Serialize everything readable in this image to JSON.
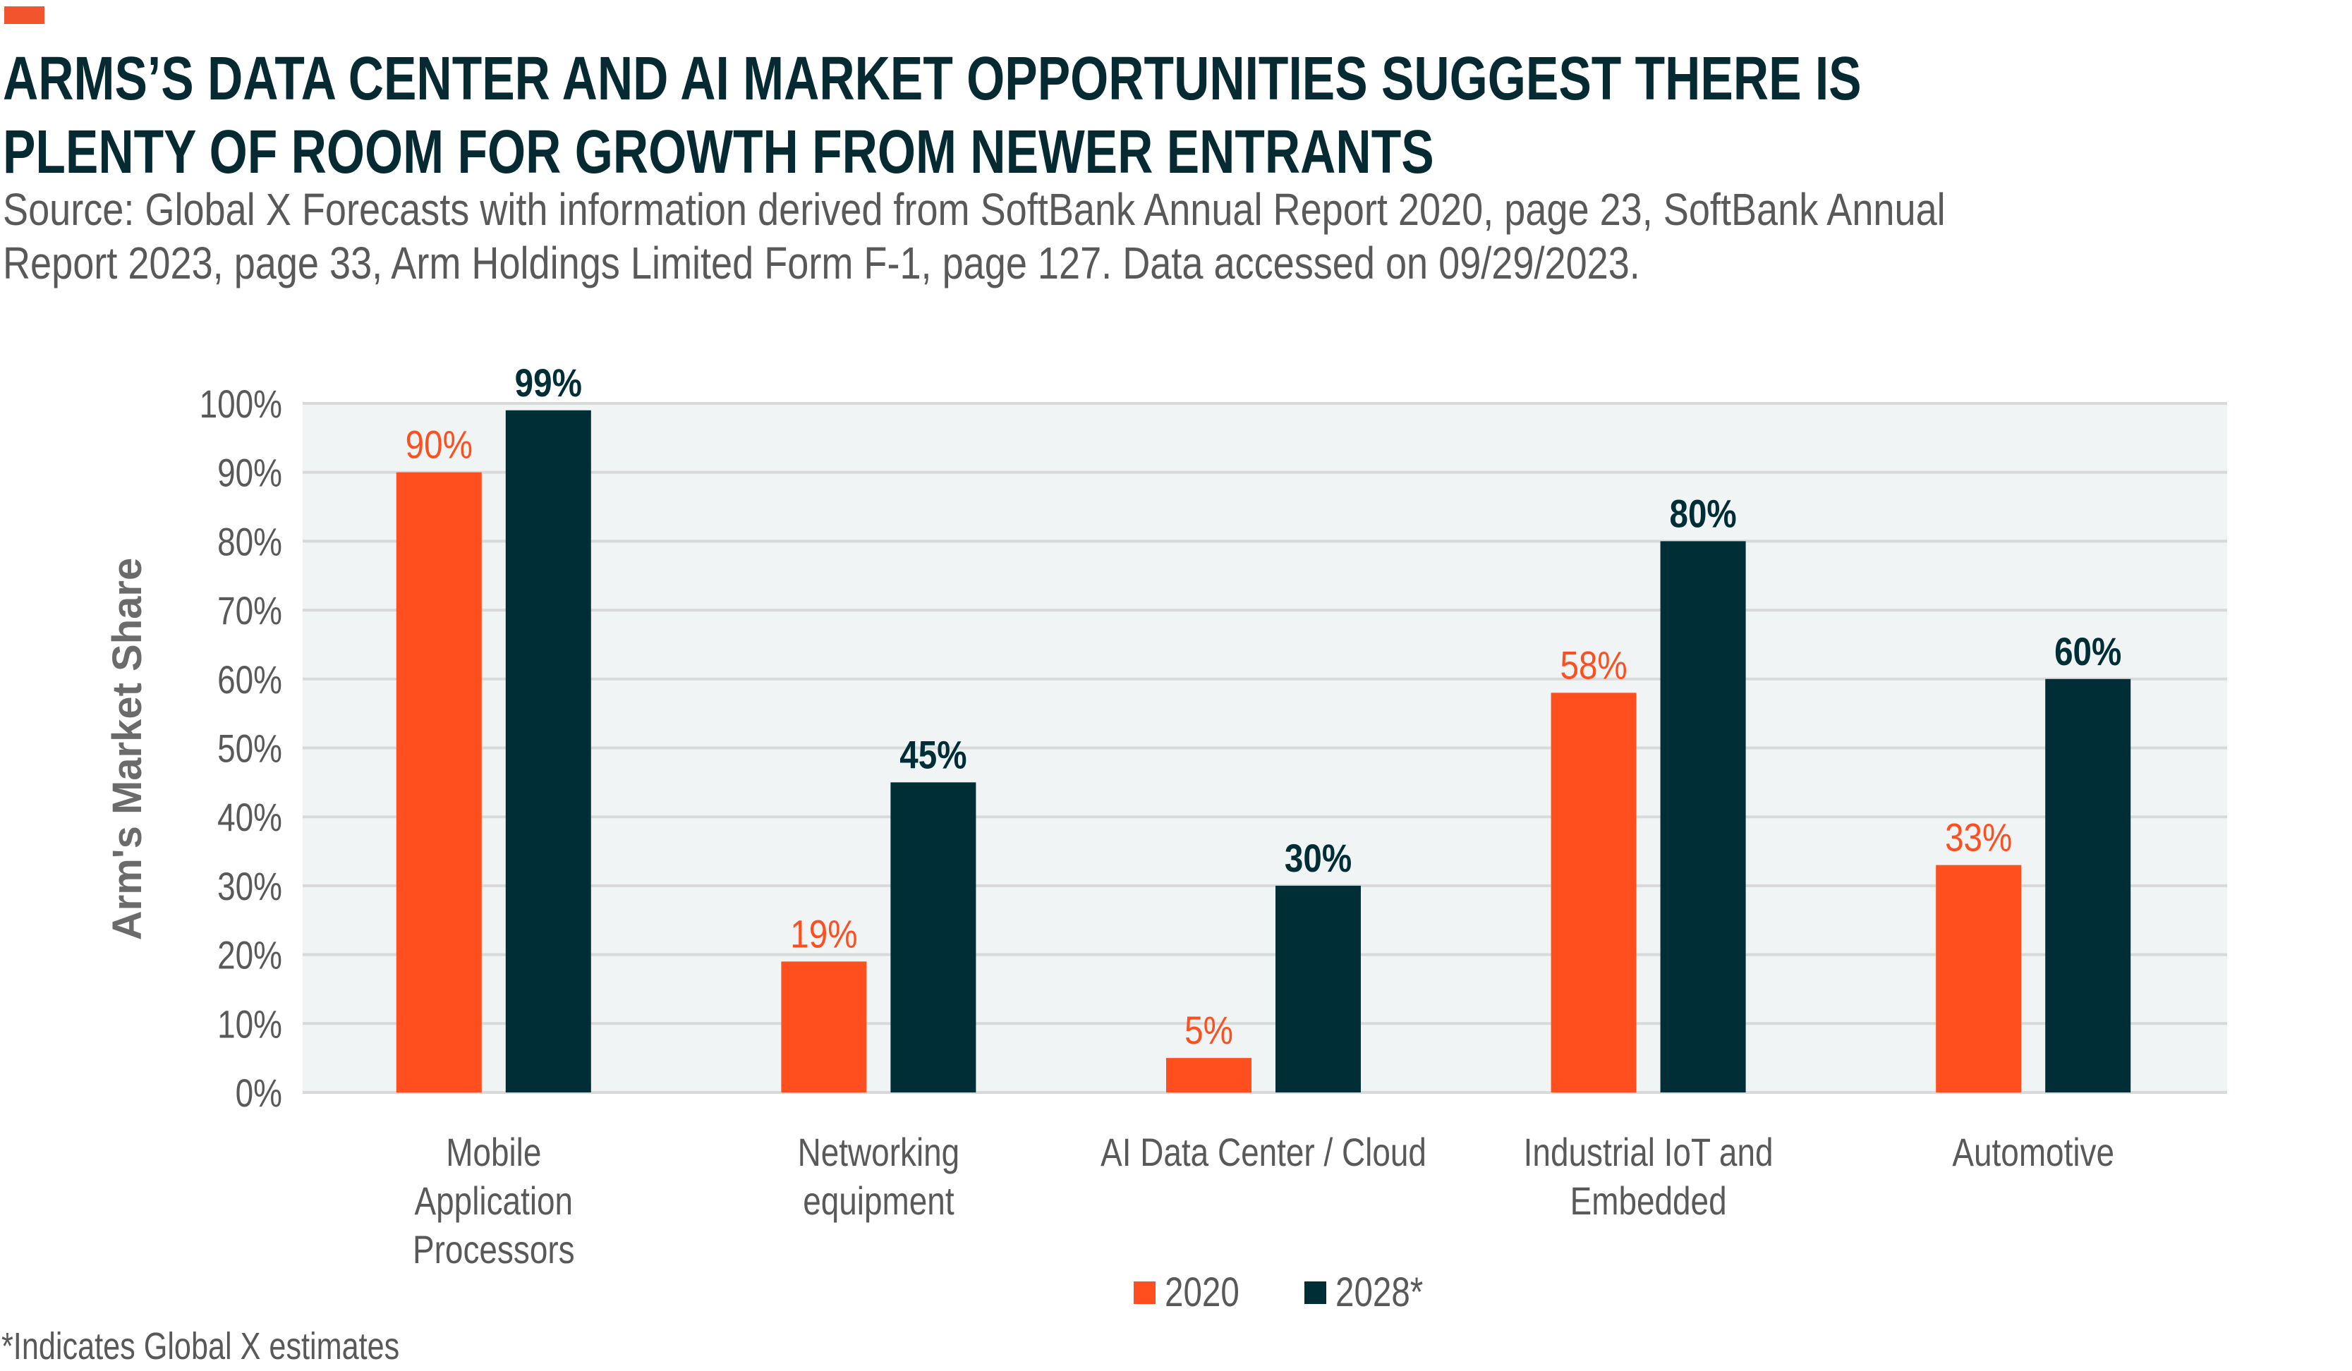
{
  "header": {
    "accent_color": "#F2542D",
    "title_lines": [
      "ARMS’S DATA CENTER AND AI MARKET OPPORTUNITIES SUGGEST THERE IS",
      "PLENTY OF ROOM FOR GROWTH FROM NEWER ENTRANTS"
    ],
    "subtitle_lines": [
      "Source: Global X Forecasts with information derived from SoftBank Annual Report 2020, page 23, SoftBank Annual",
      "Report 2023, page 33, Arm Holdings Limited Form F-1, page 127. Data accessed on 09/29/2023."
    ]
  },
  "footnote": "*Indicates Global X estimates",
  "colors": {
    "series_2020": "#FF4F1F",
    "series_2028": "#002E37",
    "plot_background": "#F1F4F5",
    "gridline": "#D9D9D9",
    "axis_text": "#595959",
    "title_text": "#062A31"
  },
  "chart_data": {
    "type": "bar",
    "title": "ARMS’S DATA CENTER AND AI MARKET OPPORTUNITIES SUGGEST THERE IS PLENTY OF ROOM FOR GROWTH FROM NEWER ENTRANTS",
    "xlabel": "",
    "ylabel": "Arm's Market Share",
    "ylim": [
      0,
      100
    ],
    "yticks": [
      0,
      10,
      20,
      30,
      40,
      50,
      60,
      70,
      80,
      90,
      100
    ],
    "ytick_labels": [
      "0%",
      "10%",
      "20%",
      "30%",
      "40%",
      "50%",
      "60%",
      "70%",
      "80%",
      "90%",
      "100%"
    ],
    "grid": true,
    "legend_position": "bottom-center",
    "categories": [
      [
        "Mobile",
        "Application",
        "Processors"
      ],
      [
        "Networking",
        "equipment"
      ],
      [
        "AI Data Center / Cloud"
      ],
      [
        "Industrial IoT and",
        "Embedded"
      ],
      [
        "Automotive"
      ]
    ],
    "series": [
      {
        "name": "2020",
        "values": [
          90,
          19,
          5,
          58,
          33
        ],
        "labels": [
          "90%",
          "19%",
          "5%",
          "58%",
          "33%"
        ]
      },
      {
        "name": "2028*",
        "values": [
          99,
          45,
          30,
          80,
          60
        ],
        "labels": [
          "99%",
          "45%",
          "30%",
          "80%",
          "60%"
        ]
      }
    ]
  }
}
